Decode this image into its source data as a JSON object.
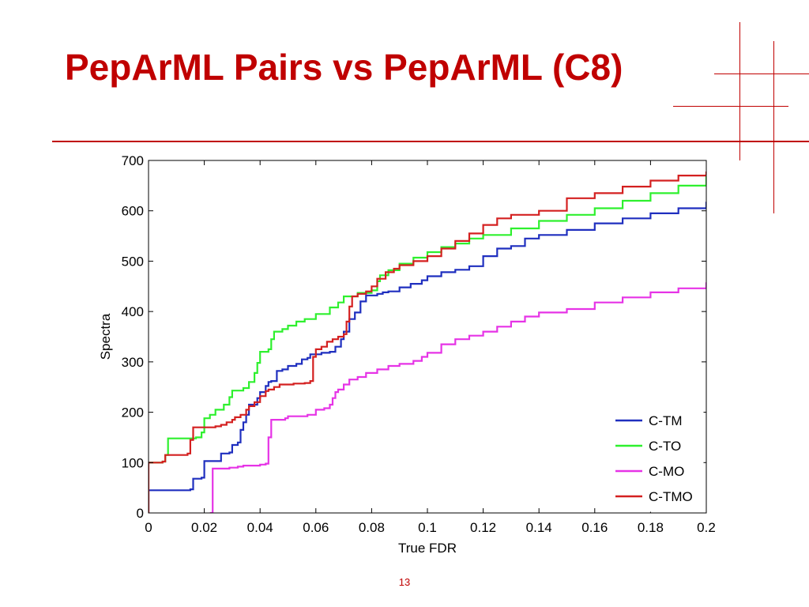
{
  "slide": {
    "title": "PepArML Pairs vs PepArML (C8)",
    "page_number": "13",
    "accent_color": "#c00000",
    "decoration": "red-crosshair-lines"
  },
  "chart_data": {
    "type": "line",
    "title": "",
    "xlabel": "True FDR",
    "ylabel": "Spectra",
    "xlim": [
      0,
      0.2
    ],
    "ylim": [
      0,
      700
    ],
    "x_ticks": [
      "0",
      "0.02",
      "0.04",
      "0.06",
      "0.08",
      "0.1",
      "0.12",
      "0.14",
      "0.16",
      "0.18",
      "0.2"
    ],
    "y_ticks": [
      "0",
      "100",
      "200",
      "300",
      "400",
      "500",
      "600",
      "700"
    ],
    "grid": false,
    "legend_position": "bottom-right",
    "series": [
      {
        "name": "C-TM",
        "color": "#1f2fbf",
        "step": true,
        "points": [
          [
            0,
            0
          ],
          [
            0,
            45
          ],
          [
            0.015,
            47
          ],
          [
            0.016,
            68
          ],
          [
            0.019,
            70
          ],
          [
            0.02,
            103
          ],
          [
            0.025,
            103
          ],
          [
            0.026,
            118
          ],
          [
            0.029,
            120
          ],
          [
            0.03,
            135
          ],
          [
            0.032,
            140
          ],
          [
            0.033,
            165
          ],
          [
            0.034,
            180
          ],
          [
            0.035,
            195
          ],
          [
            0.036,
            215
          ],
          [
            0.039,
            228
          ],
          [
            0.04,
            240
          ],
          [
            0.042,
            252
          ],
          [
            0.043,
            260
          ],
          [
            0.044,
            262
          ],
          [
            0.046,
            282
          ],
          [
            0.048,
            285
          ],
          [
            0.05,
            292
          ],
          [
            0.053,
            296
          ],
          [
            0.055,
            305
          ],
          [
            0.057,
            308
          ],
          [
            0.058,
            315
          ],
          [
            0.062,
            318
          ],
          [
            0.065,
            320
          ],
          [
            0.067,
            330
          ],
          [
            0.069,
            345
          ],
          [
            0.07,
            360
          ],
          [
            0.072,
            385
          ],
          [
            0.074,
            398
          ],
          [
            0.076,
            420
          ],
          [
            0.078,
            432
          ],
          [
            0.082,
            435
          ],
          [
            0.084,
            438
          ],
          [
            0.086,
            440
          ],
          [
            0.09,
            448
          ],
          [
            0.094,
            455
          ],
          [
            0.098,
            462
          ],
          [
            0.1,
            470
          ],
          [
            0.105,
            478
          ],
          [
            0.11,
            483
          ],
          [
            0.115,
            490
          ],
          [
            0.12,
            510
          ],
          [
            0.125,
            525
          ],
          [
            0.13,
            530
          ],
          [
            0.135,
            545
          ],
          [
            0.14,
            552
          ],
          [
            0.15,
            562
          ],
          [
            0.16,
            575
          ],
          [
            0.17,
            585
          ],
          [
            0.18,
            595
          ],
          [
            0.19,
            605
          ],
          [
            0.2,
            618
          ]
        ]
      },
      {
        "name": "C-TO",
        "color": "#2ef02e",
        "step": true,
        "points": [
          [
            0,
            100
          ],
          [
            0.005,
            102
          ],
          [
            0.006,
            115
          ],
          [
            0.007,
            148
          ],
          [
            0.017,
            150
          ],
          [
            0.019,
            160
          ],
          [
            0.02,
            188
          ],
          [
            0.022,
            195
          ],
          [
            0.024,
            205
          ],
          [
            0.027,
            215
          ],
          [
            0.029,
            230
          ],
          [
            0.03,
            243
          ],
          [
            0.034,
            248
          ],
          [
            0.036,
            260
          ],
          [
            0.038,
            278
          ],
          [
            0.039,
            298
          ],
          [
            0.04,
            320
          ],
          [
            0.043,
            325
          ],
          [
            0.044,
            345
          ],
          [
            0.045,
            360
          ],
          [
            0.048,
            365
          ],
          [
            0.05,
            372
          ],
          [
            0.053,
            380
          ],
          [
            0.056,
            385
          ],
          [
            0.06,
            395
          ],
          [
            0.065,
            408
          ],
          [
            0.068,
            418
          ],
          [
            0.07,
            430
          ],
          [
            0.075,
            437
          ],
          [
            0.08,
            442
          ],
          [
            0.082,
            460
          ],
          [
            0.083,
            472
          ],
          [
            0.086,
            482
          ],
          [
            0.09,
            495
          ],
          [
            0.095,
            507
          ],
          [
            0.1,
            518
          ],
          [
            0.105,
            528
          ],
          [
            0.11,
            535
          ],
          [
            0.115,
            545
          ],
          [
            0.12,
            552
          ],
          [
            0.13,
            565
          ],
          [
            0.14,
            580
          ],
          [
            0.15,
            592
          ],
          [
            0.16,
            605
          ],
          [
            0.17,
            620
          ],
          [
            0.18,
            635
          ],
          [
            0.19,
            650
          ],
          [
            0.2,
            672
          ]
        ]
      },
      {
        "name": "C-MO",
        "color": "#e633e6",
        "step": true,
        "points": [
          [
            0.022,
            0
          ],
          [
            0.023,
            88
          ],
          [
            0.029,
            90
          ],
          [
            0.032,
            92
          ],
          [
            0.034,
            94
          ],
          [
            0.04,
            96
          ],
          [
            0.042,
            98
          ],
          [
            0.043,
            150
          ],
          [
            0.044,
            185
          ],
          [
            0.049,
            188
          ],
          [
            0.05,
            192
          ],
          [
            0.057,
            195
          ],
          [
            0.06,
            205
          ],
          [
            0.063,
            208
          ],
          [
            0.065,
            215
          ],
          [
            0.066,
            228
          ],
          [
            0.067,
            240
          ],
          [
            0.068,
            245
          ],
          [
            0.07,
            255
          ],
          [
            0.072,
            265
          ],
          [
            0.075,
            270
          ],
          [
            0.078,
            278
          ],
          [
            0.082,
            285
          ],
          [
            0.086,
            292
          ],
          [
            0.09,
            296
          ],
          [
            0.095,
            302
          ],
          [
            0.098,
            310
          ],
          [
            0.1,
            318
          ],
          [
            0.105,
            335
          ],
          [
            0.11,
            345
          ],
          [
            0.115,
            352
          ],
          [
            0.12,
            360
          ],
          [
            0.125,
            370
          ],
          [
            0.13,
            380
          ],
          [
            0.135,
            390
          ],
          [
            0.14,
            398
          ],
          [
            0.15,
            405
          ],
          [
            0.16,
            418
          ],
          [
            0.17,
            428
          ],
          [
            0.18,
            438
          ],
          [
            0.19,
            446
          ],
          [
            0.2,
            458
          ]
        ]
      },
      {
        "name": "C-TMO",
        "color": "#d42020",
        "step": true,
        "points": [
          [
            0,
            0
          ],
          [
            0,
            100
          ],
          [
            0.005,
            102
          ],
          [
            0.006,
            115
          ],
          [
            0.014,
            118
          ],
          [
            0.015,
            145
          ],
          [
            0.016,
            170
          ],
          [
            0.024,
            172
          ],
          [
            0.026,
            175
          ],
          [
            0.028,
            180
          ],
          [
            0.03,
            185
          ],
          [
            0.031,
            190
          ],
          [
            0.033,
            195
          ],
          [
            0.035,
            205
          ],
          [
            0.036,
            212
          ],
          [
            0.038,
            220
          ],
          [
            0.04,
            232
          ],
          [
            0.042,
            242
          ],
          [
            0.043,
            245
          ],
          [
            0.045,
            250
          ],
          [
            0.047,
            255
          ],
          [
            0.052,
            257
          ],
          [
            0.056,
            258
          ],
          [
            0.058,
            262
          ],
          [
            0.059,
            310
          ],
          [
            0.06,
            325
          ],
          [
            0.062,
            330
          ],
          [
            0.064,
            340
          ],
          [
            0.066,
            345
          ],
          [
            0.068,
            350
          ],
          [
            0.07,
            355
          ],
          [
            0.071,
            380
          ],
          [
            0.072,
            410
          ],
          [
            0.073,
            430
          ],
          [
            0.075,
            435
          ],
          [
            0.078,
            440
          ],
          [
            0.08,
            450
          ],
          [
            0.082,
            465
          ],
          [
            0.085,
            478
          ],
          [
            0.088,
            485
          ],
          [
            0.09,
            492
          ],
          [
            0.095,
            500
          ],
          [
            0.1,
            510
          ],
          [
            0.105,
            525
          ],
          [
            0.11,
            540
          ],
          [
            0.115,
            555
          ],
          [
            0.12,
            572
          ],
          [
            0.125,
            585
          ],
          [
            0.13,
            592
          ],
          [
            0.14,
            600
          ],
          [
            0.15,
            625
          ],
          [
            0.16,
            635
          ],
          [
            0.17,
            648
          ],
          [
            0.18,
            660
          ],
          [
            0.19,
            670
          ],
          [
            0.2,
            678
          ]
        ]
      }
    ]
  }
}
